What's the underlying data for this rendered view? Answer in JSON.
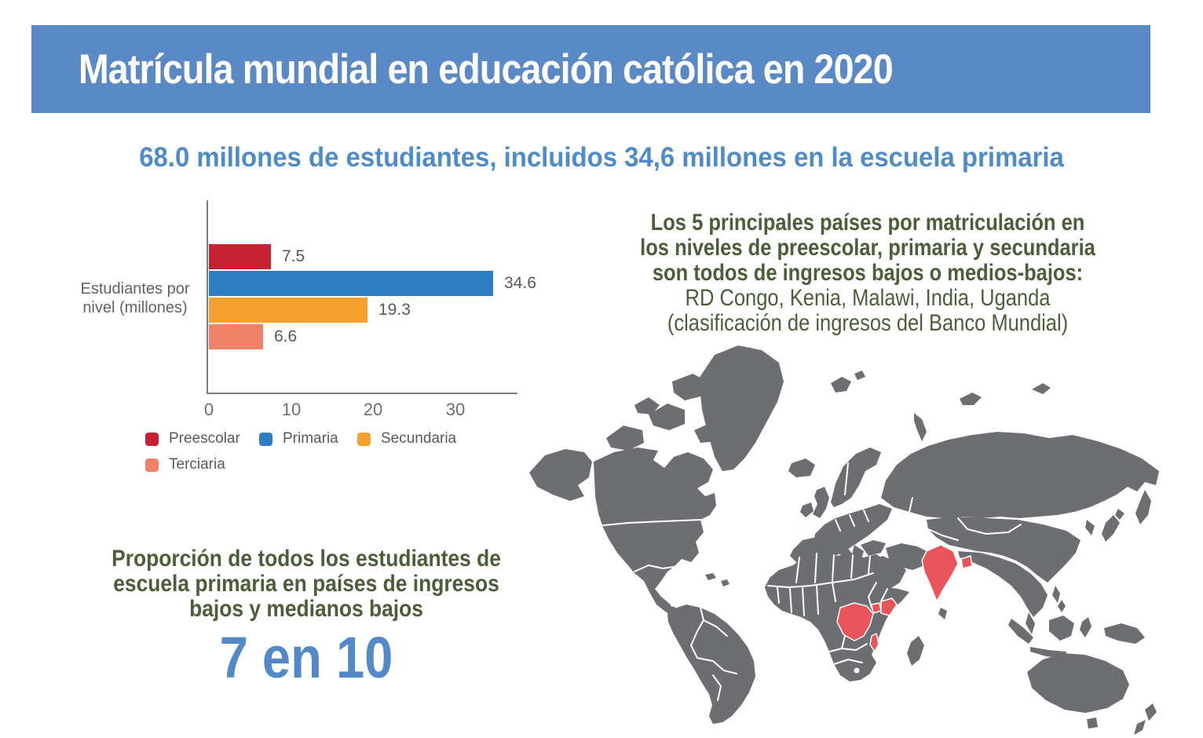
{
  "colors": {
    "banner_bg": "#5a8ac6",
    "headline_text": "#4e8bc9",
    "note_green": "#4b5e37",
    "stat_blue": "#5389c8",
    "axis_line": "#7b7d80",
    "tick_text": "#6d6e71",
    "value_text": "#58595b"
  },
  "header": {
    "title": "Matrícula mundial en educación católica en 2020"
  },
  "headline": "68.0 millones de estudiantes, incluidos 34,6 millones en la escuela primaria",
  "chart_data": {
    "type": "bar",
    "orientation": "horizontal",
    "axis_label": "Estudiantes por nivel (millones)",
    "categories": [
      "Preescolar",
      "Primaria",
      "Secundaria",
      "Terciaria"
    ],
    "values": [
      7.5,
      34.6,
      19.3,
      6.6
    ],
    "value_labels": [
      "7.5",
      "34.6",
      "19.3",
      "6.6"
    ],
    "colors": [
      "#c42133",
      "#2e7fc2",
      "#f4a12d",
      "#ee8166"
    ],
    "xticks": [
      0,
      10,
      20,
      30
    ],
    "xlim": [
      0,
      37.5
    ],
    "grid": false,
    "legend_position": "bottom"
  },
  "top_countries_note": {
    "line1": "Los 5 principales países por matriculación en",
    "line2": "los niveles de preescolar, primaria y secundaria",
    "line3": "son todos de ingresos bajos o medios-bajos:",
    "line4": "RD Congo, Kenia, Malawi, India, Uganda",
    "line5": "(clasificación de ingresos del Banco Mundial)"
  },
  "proportion_note": {
    "line1": "Proporción de todos los estudiantes de",
    "line2": "escuela primaria en países de ingresos",
    "line3": "bajos y medianos bajos",
    "ratio": "7 en 10"
  },
  "map": {
    "land_color": "#6d6e71",
    "highlight_color": "#e8545a",
    "border_color": "#ffffff",
    "highlighted_countries": [
      "RD Congo",
      "Kenia",
      "Malawi",
      "India",
      "Uganda"
    ]
  }
}
